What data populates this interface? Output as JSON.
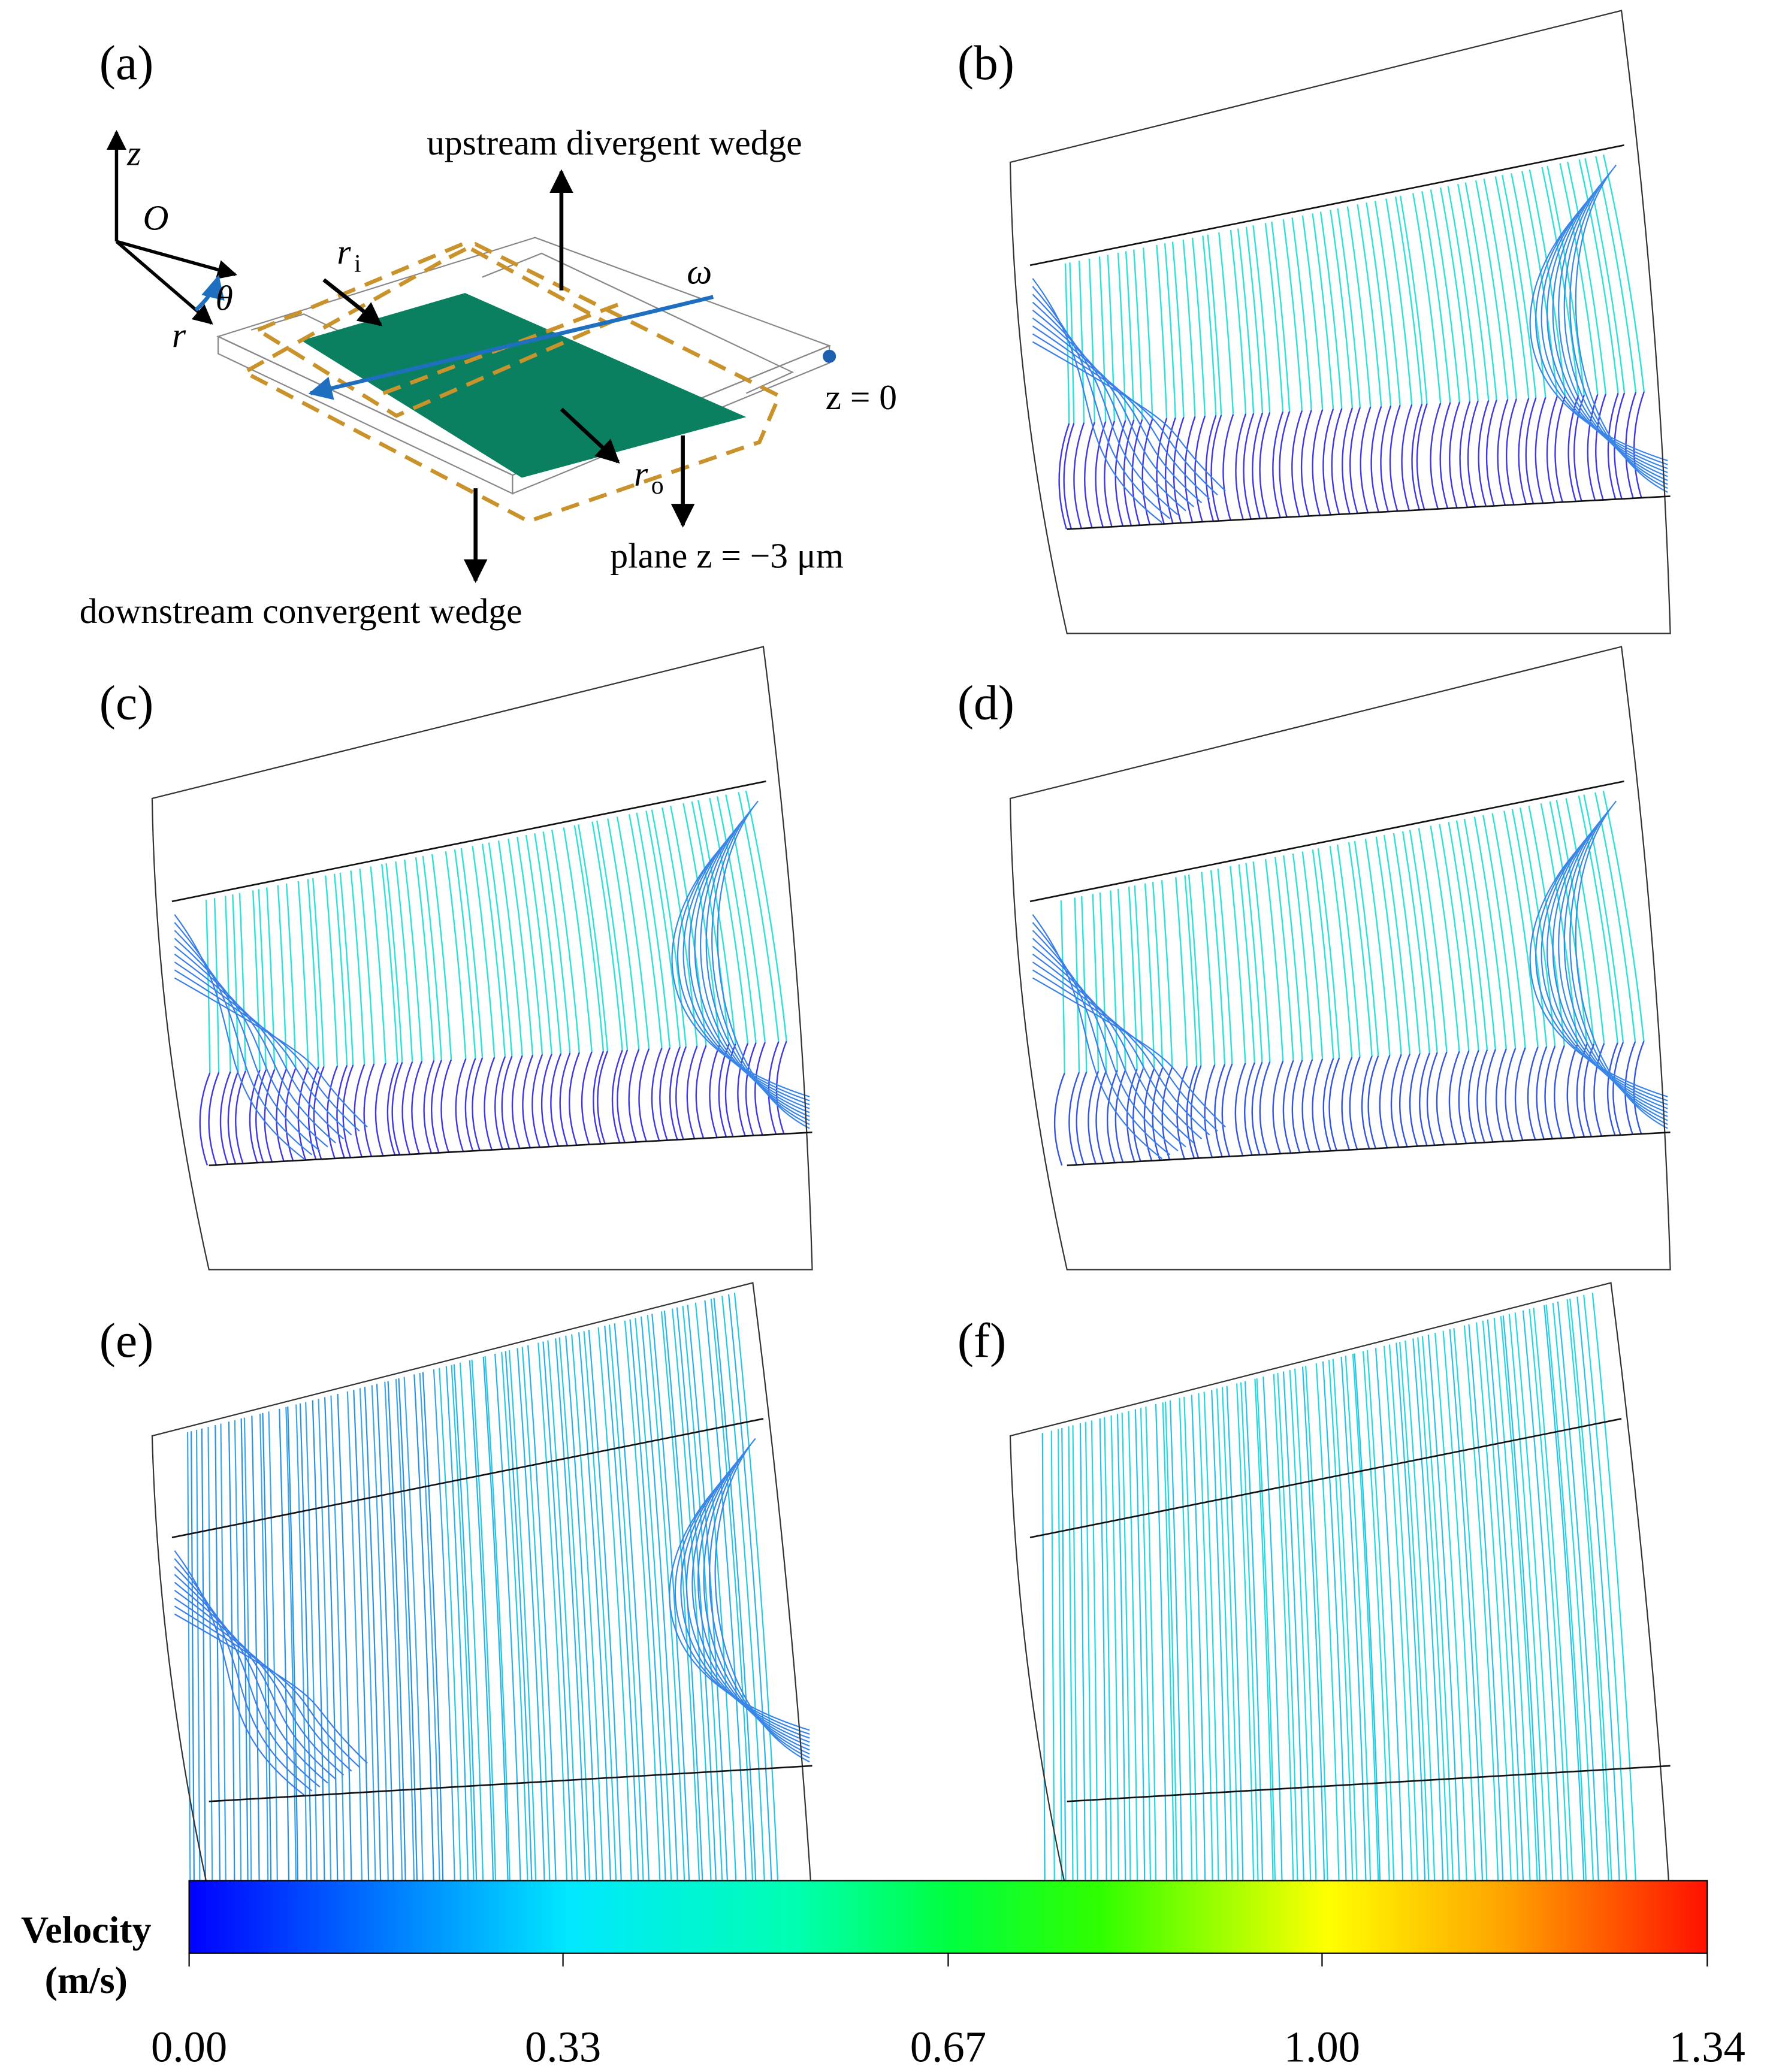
{
  "panels": [
    {
      "label": "(a)"
    },
    {
      "label": "(b)"
    },
    {
      "label": "(c)"
    },
    {
      "label": "(d)"
    },
    {
      "label": "(e)"
    },
    {
      "label": "(f)"
    }
  ],
  "schematic": {
    "axis_z": "z",
    "origin": "O",
    "angle": "θ",
    "axis_r": "r",
    "r_inner": "r",
    "r_inner_sub": "i",
    "r_outer": "r",
    "r_outer_sub": "o",
    "omega": "ω",
    "upstream": "upstream divergent wedge",
    "downstream": "downstream convergent wedge",
    "plane": "plane z = −3 μm",
    "surface": "z = 0"
  },
  "colorbar": {
    "title": [
      "Velocity",
      "(m/s)"
    ],
    "range": [
      0,
      1.34
    ],
    "ticks": [
      {
        "value": 0,
        "label": "0.00"
      },
      0.33,
      0.67,
      {
        "value": 1,
        "label": "1.00"
      },
      1.34
    ]
  }
}
